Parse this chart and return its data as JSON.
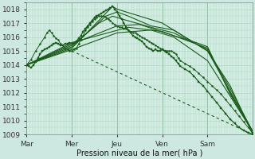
{
  "bg_color": "#cce8e0",
  "plot_bg": "#d4ece4",
  "grid_color": "#a8d4c0",
  "line_color": "#1a5c1a",
  "xlabel": "Pression niveau de la mer( hPa )",
  "ylim": [
    1009,
    1018.5
  ],
  "yticks": [
    1009,
    1010,
    1011,
    1012,
    1013,
    1014,
    1015,
    1016,
    1017,
    1018
  ],
  "xtick_labels": [
    "Mar",
    "Mer",
    "Jeu",
    "Ven",
    "Sam"
  ],
  "day_positions": [
    0.0,
    0.2,
    0.4,
    0.6,
    0.8
  ],
  "figsize": [
    3.2,
    2.0
  ],
  "dpi": 100,
  "series": [
    {
      "style": "dotted_line",
      "lw": 0.7,
      "ms": 1.8,
      "points": [
        [
          0.0,
          1014.0
        ],
        [
          0.02,
          1014.4
        ],
        [
          0.04,
          1015.0
        ],
        [
          0.06,
          1015.5
        ],
        [
          0.08,
          1016.0
        ],
        [
          0.09,
          1016.3
        ],
        [
          0.1,
          1016.5
        ],
        [
          0.11,
          1016.3
        ],
        [
          0.12,
          1016.1
        ],
        [
          0.13,
          1015.9
        ],
        [
          0.14,
          1015.8
        ],
        [
          0.15,
          1015.5
        ],
        [
          0.17,
          1015.2
        ],
        [
          0.18,
          1015.1
        ],
        [
          0.19,
          1015.0
        ],
        [
          0.2,
          1015.0
        ],
        [
          0.21,
          1015.1
        ],
        [
          0.22,
          1015.2
        ],
        [
          0.23,
          1015.5
        ],
        [
          0.24,
          1015.8
        ],
        [
          0.25,
          1016.1
        ],
        [
          0.26,
          1016.5
        ],
        [
          0.27,
          1016.7
        ],
        [
          0.28,
          1016.9
        ],
        [
          0.29,
          1017.1
        ],
        [
          0.3,
          1017.3
        ],
        [
          0.31,
          1017.4
        ],
        [
          0.32,
          1017.5
        ],
        [
          0.33,
          1017.5
        ],
        [
          0.34,
          1017.5
        ],
        [
          0.35,
          1017.4
        ],
        [
          0.36,
          1017.3
        ],
        [
          0.37,
          1017.2
        ],
        [
          0.38,
          1017.0
        ],
        [
          0.39,
          1016.9
        ],
        [
          0.4,
          1016.8
        ],
        [
          0.41,
          1016.7
        ],
        [
          0.42,
          1016.7
        ],
        [
          0.43,
          1016.6
        ],
        [
          0.44,
          1016.6
        ],
        [
          0.45,
          1016.5
        ],
        [
          0.46,
          1016.4
        ],
        [
          0.47,
          1016.3
        ],
        [
          0.48,
          1016.3
        ],
        [
          0.49,
          1016.2
        ],
        [
          0.5,
          1016.1
        ],
        [
          0.51,
          1016.0
        ],
        [
          0.52,
          1015.9
        ],
        [
          0.53,
          1015.8
        ],
        [
          0.54,
          1015.7
        ],
        [
          0.55,
          1015.6
        ],
        [
          0.56,
          1015.5
        ],
        [
          0.57,
          1015.4
        ],
        [
          0.58,
          1015.3
        ],
        [
          0.59,
          1015.2
        ],
        [
          0.6,
          1015.1
        ],
        [
          0.61,
          1015.0
        ],
        [
          0.62,
          1015.0
        ],
        [
          0.63,
          1015.0
        ],
        [
          0.64,
          1015.0
        ],
        [
          0.65,
          1014.9
        ],
        [
          0.66,
          1014.8
        ],
        [
          0.67,
          1014.5
        ],
        [
          0.68,
          1014.3
        ],
        [
          0.7,
          1014.1
        ],
        [
          0.72,
          1013.9
        ],
        [
          0.74,
          1013.7
        ],
        [
          0.76,
          1013.4
        ],
        [
          0.78,
          1013.1
        ],
        [
          0.8,
          1012.8
        ],
        [
          0.82,
          1012.5
        ],
        [
          0.84,
          1012.2
        ],
        [
          0.86,
          1011.9
        ],
        [
          0.88,
          1011.5
        ],
        [
          0.9,
          1011.1
        ],
        [
          0.92,
          1010.7
        ],
        [
          0.94,
          1010.3
        ],
        [
          0.96,
          1009.9
        ],
        [
          0.98,
          1009.5
        ],
        [
          1.0,
          1009.1
        ]
      ]
    },
    {
      "style": "line",
      "lw": 0.8,
      "points": [
        [
          0.0,
          1014.0
        ],
        [
          0.2,
          1015.1
        ],
        [
          0.4,
          1016.3
        ],
        [
          0.55,
          1016.5
        ],
        [
          0.65,
          1016.0
        ],
        [
          0.8,
          1014.3
        ],
        [
          1.0,
          1009.2
        ]
      ]
    },
    {
      "style": "line",
      "lw": 0.8,
      "points": [
        [
          0.0,
          1014.0
        ],
        [
          0.2,
          1015.2
        ],
        [
          0.38,
          1018.2
        ],
        [
          0.4,
          1018.0
        ],
        [
          0.5,
          1017.5
        ],
        [
          0.6,
          1017.0
        ],
        [
          0.65,
          1016.5
        ],
        [
          0.75,
          1015.5
        ],
        [
          0.8,
          1015.0
        ],
        [
          0.9,
          1012.5
        ],
        [
          1.0,
          1009.0
        ]
      ]
    },
    {
      "style": "line",
      "lw": 0.8,
      "points": [
        [
          0.0,
          1014.0
        ],
        [
          0.2,
          1015.3
        ],
        [
          0.35,
          1017.5
        ],
        [
          0.4,
          1017.8
        ],
        [
          0.45,
          1017.5
        ],
        [
          0.55,
          1016.8
        ],
        [
          0.65,
          1016.5
        ],
        [
          0.75,
          1015.5
        ],
        [
          0.8,
          1015.1
        ],
        [
          0.9,
          1012.3
        ],
        [
          1.0,
          1009.2
        ]
      ]
    },
    {
      "style": "line",
      "lw": 0.8,
      "points": [
        [
          0.0,
          1014.0
        ],
        [
          0.2,
          1015.4
        ],
        [
          0.32,
          1017.0
        ],
        [
          0.38,
          1017.5
        ],
        [
          0.42,
          1017.3
        ],
        [
          0.55,
          1016.7
        ],
        [
          0.65,
          1016.3
        ],
        [
          0.75,
          1015.5
        ],
        [
          0.8,
          1015.0
        ],
        [
          0.9,
          1012.1
        ],
        [
          1.0,
          1009.2
        ]
      ]
    },
    {
      "style": "line",
      "lw": 0.8,
      "points": [
        [
          0.0,
          1014.0
        ],
        [
          0.2,
          1015.5
        ],
        [
          0.4,
          1016.8
        ],
        [
          0.5,
          1016.9
        ],
        [
          0.65,
          1016.1
        ],
        [
          0.75,
          1015.5
        ],
        [
          0.8,
          1015.2
        ],
        [
          0.9,
          1012.0
        ],
        [
          1.0,
          1009.2
        ]
      ]
    },
    {
      "style": "line",
      "lw": 0.8,
      "points": [
        [
          0.0,
          1014.0
        ],
        [
          0.2,
          1015.6
        ],
        [
          0.45,
          1016.7
        ],
        [
          0.6,
          1016.4
        ],
        [
          0.65,
          1016.1
        ],
        [
          0.75,
          1015.6
        ],
        [
          0.8,
          1015.3
        ],
        [
          0.9,
          1011.9
        ],
        [
          1.0,
          1009.2
        ]
      ]
    },
    {
      "style": "dashed",
      "lw": 0.8,
      "points": [
        [
          0.2,
          1015.0
        ],
        [
          1.0,
          1009.0
        ]
      ]
    },
    {
      "style": "dotted_marker",
      "lw": 0.9,
      "ms": 2.0,
      "points": [
        [
          0.0,
          1014.0
        ],
        [
          0.01,
          1013.9
        ],
        [
          0.02,
          1013.8
        ],
        [
          0.03,
          1014.0
        ],
        [
          0.04,
          1014.2
        ],
        [
          0.05,
          1014.5
        ],
        [
          0.06,
          1014.8
        ],
        [
          0.07,
          1015.0
        ],
        [
          0.08,
          1015.1
        ],
        [
          0.09,
          1015.2
        ],
        [
          0.1,
          1015.3
        ],
        [
          0.11,
          1015.4
        ],
        [
          0.12,
          1015.5
        ],
        [
          0.13,
          1015.6
        ],
        [
          0.14,
          1015.5
        ],
        [
          0.15,
          1015.4
        ],
        [
          0.16,
          1015.4
        ],
        [
          0.17,
          1015.5
        ],
        [
          0.18,
          1015.5
        ],
        [
          0.19,
          1015.6
        ],
        [
          0.2,
          1015.5
        ],
        [
          0.21,
          1015.6
        ],
        [
          0.22,
          1015.7
        ],
        [
          0.23,
          1015.9
        ],
        [
          0.24,
          1016.1
        ],
        [
          0.25,
          1016.4
        ],
        [
          0.26,
          1016.6
        ],
        [
          0.27,
          1016.8
        ],
        [
          0.28,
          1017.0
        ],
        [
          0.29,
          1017.2
        ],
        [
          0.3,
          1017.4
        ],
        [
          0.31,
          1017.5
        ],
        [
          0.32,
          1017.6
        ],
        [
          0.33,
          1017.7
        ],
        [
          0.34,
          1017.8
        ],
        [
          0.35,
          1017.9
        ],
        [
          0.36,
          1018.0
        ],
        [
          0.37,
          1018.1
        ],
        [
          0.38,
          1018.2
        ],
        [
          0.39,
          1018.0
        ],
        [
          0.4,
          1017.8
        ],
        [
          0.41,
          1017.5
        ],
        [
          0.42,
          1017.3
        ],
        [
          0.43,
          1017.0
        ],
        [
          0.44,
          1016.7
        ],
        [
          0.45,
          1016.5
        ],
        [
          0.46,
          1016.3
        ],
        [
          0.47,
          1016.1
        ],
        [
          0.48,
          1016.0
        ],
        [
          0.49,
          1015.9
        ],
        [
          0.5,
          1015.8
        ],
        [
          0.51,
          1015.7
        ],
        [
          0.52,
          1015.5
        ],
        [
          0.53,
          1015.3
        ],
        [
          0.54,
          1015.2
        ],
        [
          0.55,
          1015.1
        ],
        [
          0.56,
          1015.0
        ],
        [
          0.57,
          1015.1
        ],
        [
          0.58,
          1015.0
        ],
        [
          0.59,
          1015.0
        ],
        [
          0.6,
          1015.1
        ],
        [
          0.61,
          1015.0
        ],
        [
          0.62,
          1014.9
        ],
        [
          0.63,
          1014.8
        ],
        [
          0.64,
          1014.6
        ],
        [
          0.65,
          1014.5
        ],
        [
          0.66,
          1014.3
        ],
        [
          0.67,
          1014.1
        ],
        [
          0.68,
          1013.9
        ],
        [
          0.7,
          1013.7
        ],
        [
          0.72,
          1013.5
        ],
        [
          0.74,
          1013.2
        ],
        [
          0.76,
          1012.8
        ],
        [
          0.78,
          1012.5
        ],
        [
          0.8,
          1012.1
        ],
        [
          0.82,
          1011.7
        ],
        [
          0.84,
          1011.3
        ],
        [
          0.86,
          1010.9
        ],
        [
          0.88,
          1010.5
        ],
        [
          0.9,
          1010.1
        ],
        [
          0.92,
          1009.8
        ],
        [
          0.94,
          1009.5
        ],
        [
          0.96,
          1009.3
        ],
        [
          0.98,
          1009.1
        ],
        [
          1.0,
          1009.0
        ]
      ]
    }
  ]
}
